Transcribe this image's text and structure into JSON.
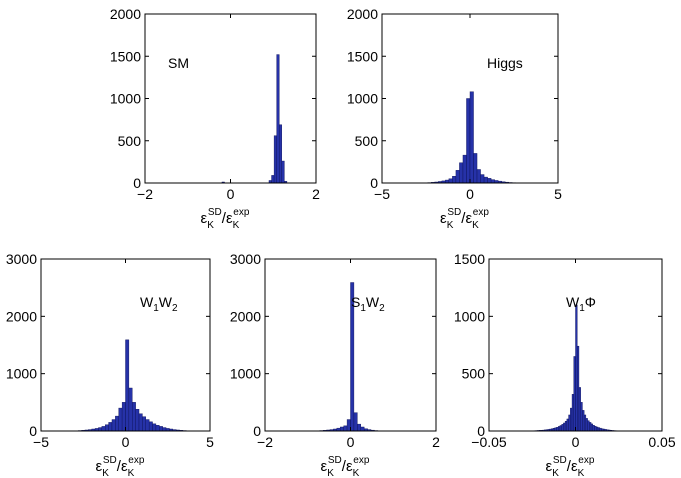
{
  "chart_data": [
    {
      "type": "bar",
      "name": "sm-histogram",
      "annotation": "SM",
      "xlim": [
        -2,
        2
      ],
      "ylim": [
        0,
        2000
      ],
      "xticks": [
        -2,
        0,
        2
      ],
      "xtick_labels": [
        "−2",
        "0",
        "2"
      ],
      "yticks": [
        0,
        500,
        1000,
        1500,
        2000
      ],
      "ytick_labels": [
        "0",
        "500",
        "1000",
        "1500",
        "2000"
      ],
      "xlabel": {
        "base": "ε",
        "sub1": "K",
        "sup1": "SD",
        "slash": "/",
        "sub2": "K",
        "sup2": "exp"
      },
      "bin_width": 0.06,
      "bins": [
        [
          -0.2,
          12
        ],
        [
          0.9,
          30
        ],
        [
          0.96,
          90
        ],
        [
          1.02,
          560
        ],
        [
          1.08,
          1520
        ],
        [
          1.14,
          690
        ],
        [
          1.2,
          260
        ],
        [
          1.26,
          20
        ]
      ]
    },
    {
      "type": "bar",
      "name": "higgs-histogram",
      "annotation": "Higgs",
      "xlim": [
        -5,
        5
      ],
      "ylim": [
        0,
        2000
      ],
      "xticks": [
        -5,
        0,
        5
      ],
      "xtick_labels": [
        "−5",
        "0",
        "5"
      ],
      "yticks": [
        0,
        500,
        1000,
        1500,
        2000
      ],
      "ytick_labels": [
        "0",
        "500",
        "1000",
        "1500",
        "2000"
      ],
      "xlabel": {
        "base": "ε",
        "sub1": "K",
        "sup1": "SD",
        "slash": "/",
        "sub2": "K",
        "sup2": "exp"
      },
      "bin_width": 0.2,
      "bins": [
        [
          -2.4,
          5
        ],
        [
          -2.2,
          8
        ],
        [
          -2.0,
          12
        ],
        [
          -1.8,
          18
        ],
        [
          -1.6,
          25
        ],
        [
          -1.4,
          35
        ],
        [
          -1.2,
          50
        ],
        [
          -1.0,
          80
        ],
        [
          -0.8,
          150
        ],
        [
          -0.6,
          240
        ],
        [
          -0.4,
          330
        ],
        [
          -0.2,
          1000
        ],
        [
          0.0,
          1080
        ],
        [
          0.2,
          350
        ],
        [
          0.4,
          160
        ],
        [
          0.6,
          100
        ],
        [
          0.8,
          70
        ],
        [
          1.0,
          55
        ],
        [
          1.2,
          40
        ],
        [
          1.4,
          30
        ],
        [
          1.6,
          22
        ],
        [
          1.8,
          15
        ],
        [
          2.0,
          10
        ],
        [
          2.2,
          6
        ],
        [
          2.4,
          4
        ]
      ]
    },
    {
      "type": "bar",
      "name": "w1w2-histogram",
      "annotation": {
        "a": "W",
        "a_sub": "1",
        "b": "W",
        "b_sub": "2"
      },
      "xlim": [
        -5,
        5
      ],
      "ylim": [
        0,
        3000
      ],
      "xticks": [
        -5,
        0,
        5
      ],
      "xtick_labels": [
        "−5",
        "0",
        "5"
      ],
      "yticks": [
        0,
        1000,
        2000,
        3000
      ],
      "ytick_labels": [
        "0",
        "1000",
        "2000",
        "3000"
      ],
      "xlabel": {
        "base": "ε",
        "sub1": "K",
        "sup1": "SD",
        "slash": "/",
        "sub2": "K",
        "sup2": "exp"
      },
      "bin_width": 0.2,
      "bins": [
        [
          -3.0,
          5
        ],
        [
          -2.8,
          8
        ],
        [
          -2.6,
          12
        ],
        [
          -2.4,
          18
        ],
        [
          -2.2,
          25
        ],
        [
          -2.0,
          35
        ],
        [
          -1.8,
          45
        ],
        [
          -1.6,
          60
        ],
        [
          -1.4,
          80
        ],
        [
          -1.2,
          110
        ],
        [
          -1.0,
          150
        ],
        [
          -0.8,
          200
        ],
        [
          -0.6,
          260
        ],
        [
          -0.4,
          400
        ],
        [
          -0.2,
          500
        ],
        [
          0.0,
          1590
        ],
        [
          0.2,
          750
        ],
        [
          0.4,
          500
        ],
        [
          0.6,
          380
        ],
        [
          0.8,
          300
        ],
        [
          1.0,
          250
        ],
        [
          1.2,
          200
        ],
        [
          1.4,
          160
        ],
        [
          1.6,
          125
        ],
        [
          1.8,
          100
        ],
        [
          2.0,
          80
        ],
        [
          2.2,
          60
        ],
        [
          2.4,
          45
        ],
        [
          2.6,
          35
        ],
        [
          2.8,
          25
        ],
        [
          3.0,
          18
        ],
        [
          3.2,
          12
        ],
        [
          3.4,
          8
        ],
        [
          3.6,
          5
        ]
      ]
    },
    {
      "type": "bar",
      "name": "s1w2-histogram",
      "annotation": {
        "a": "S",
        "a_sub": "1",
        "b": "W",
        "b_sub": "2"
      },
      "xlim": [
        -2,
        2
      ],
      "ylim": [
        0,
        3000
      ],
      "xticks": [
        -2,
        0,
        2
      ],
      "xtick_labels": [
        "−2",
        "0",
        "2"
      ],
      "yticks": [
        0,
        1000,
        2000,
        3000
      ],
      "ytick_labels": [
        "0",
        "1000",
        "2000",
        "3000"
      ],
      "xlabel": {
        "base": "ε",
        "sub1": "K",
        "sup1": "SD",
        "slash": "/",
        "sub2": "K",
        "sup2": "exp"
      },
      "bin_width": 0.08,
      "bins": [
        [
          -0.8,
          5
        ],
        [
          -0.72,
          8
        ],
        [
          -0.64,
          12
        ],
        [
          -0.56,
          18
        ],
        [
          -0.48,
          25
        ],
        [
          -0.4,
          35
        ],
        [
          -0.32,
          50
        ],
        [
          -0.24,
          70
        ],
        [
          -0.16,
          90
        ],
        [
          -0.08,
          200
        ],
        [
          0.0,
          2590
        ],
        [
          0.08,
          320
        ],
        [
          0.16,
          120
        ],
        [
          0.24,
          70
        ],
        [
          0.32,
          40
        ],
        [
          0.4,
          25
        ],
        [
          0.48,
          15
        ],
        [
          0.56,
          8
        ],
        [
          0.64,
          5
        ]
      ]
    },
    {
      "type": "bar",
      "name": "w1phi-histogram",
      "annotation": {
        "a": "W",
        "a_sub": "1",
        "b": "Φ",
        "b_sub": ""
      },
      "xlim": [
        -0.05,
        0.05
      ],
      "ylim": [
        0,
        1500
      ],
      "xticks": [
        -0.05,
        0,
        0.05
      ],
      "xtick_labels": [
        "−0.05",
        "0",
        "0.05"
      ],
      "yticks": [
        0,
        500,
        1000,
        1500
      ],
      "ytick_labels": [
        "0",
        "500",
        "1000",
        "1500"
      ],
      "xlabel": {
        "base": "ε",
        "sub1": "K",
        "sup1": "SD",
        "slash": "/",
        "sub2": "K",
        "sup2": "exp"
      },
      "bin_width": 0.001,
      "bins": [
        [
          -0.024,
          3
        ],
        [
          -0.023,
          4
        ],
        [
          -0.022,
          5
        ],
        [
          -0.021,
          6
        ],
        [
          -0.02,
          7
        ],
        [
          -0.019,
          8
        ],
        [
          -0.018,
          10
        ],
        [
          -0.017,
          12
        ],
        [
          -0.016,
          14
        ],
        [
          -0.015,
          17
        ],
        [
          -0.014,
          20
        ],
        [
          -0.013,
          24
        ],
        [
          -0.012,
          28
        ],
        [
          -0.011,
          33
        ],
        [
          -0.01,
          40
        ],
        [
          -0.009,
          48
        ],
        [
          -0.008,
          58
        ],
        [
          -0.007,
          70
        ],
        [
          -0.006,
          85
        ],
        [
          -0.005,
          105
        ],
        [
          -0.004,
          140
        ],
        [
          -0.003,
          200
        ],
        [
          -0.002,
          320
        ],
        [
          -0.001,
          650
        ],
        [
          0.0,
          1100
        ],
        [
          0.001,
          740
        ],
        [
          0.002,
          380
        ],
        [
          0.003,
          250
        ],
        [
          0.004,
          180
        ],
        [
          0.005,
          140
        ],
        [
          0.006,
          110
        ],
        [
          0.007,
          90
        ],
        [
          0.008,
          75
        ],
        [
          0.009,
          62
        ],
        [
          0.01,
          50
        ],
        [
          0.011,
          42
        ],
        [
          0.012,
          35
        ],
        [
          0.013,
          30
        ],
        [
          0.014,
          25
        ],
        [
          0.015,
          20
        ],
        [
          0.016,
          17
        ],
        [
          0.017,
          14
        ],
        [
          0.018,
          11
        ],
        [
          0.019,
          9
        ],
        [
          0.02,
          7
        ],
        [
          0.021,
          5
        ],
        [
          0.022,
          4
        ],
        [
          0.023,
          3
        ]
      ]
    }
  ]
}
